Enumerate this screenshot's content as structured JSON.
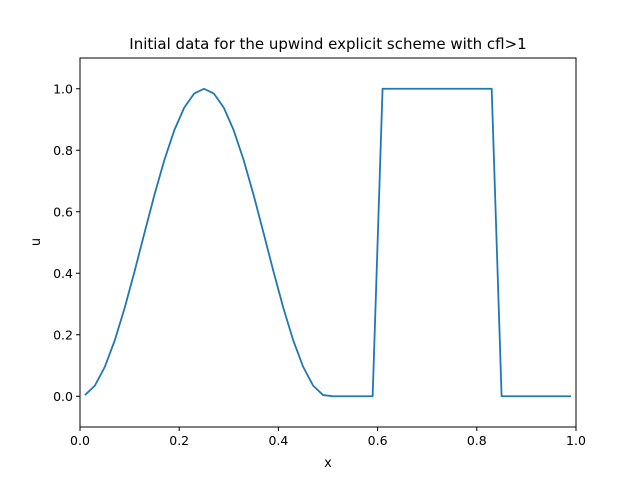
{
  "chart_data": {
    "type": "line",
    "title": "Initial data for the upwind explicit scheme with cfl>1",
    "xlabel": "x",
    "ylabel": "u",
    "xlim": [
      0.0,
      1.0
    ],
    "ylim": [
      -0.1,
      1.1
    ],
    "grid": false,
    "legend": "none",
    "xticks": [
      0.0,
      0.2,
      0.4,
      0.6,
      0.8,
      1.0
    ],
    "xtick_labels": [
      "0.0",
      "0.2",
      "0.4",
      "0.6",
      "0.8",
      "1.0"
    ],
    "yticks": [
      0.0,
      0.2,
      0.4,
      0.6,
      0.8,
      1.0
    ],
    "ytick_labels": [
      "0.0",
      "0.2",
      "0.4",
      "0.6",
      "0.8",
      "1.0"
    ],
    "series": [
      {
        "color": "#1f77b4",
        "x": [
          0.01,
          0.03,
          0.05,
          0.07,
          0.09,
          0.11,
          0.13,
          0.15,
          0.17,
          0.19,
          0.21,
          0.23,
          0.25,
          0.27,
          0.29,
          0.31,
          0.33,
          0.35,
          0.37,
          0.39,
          0.41,
          0.43,
          0.45,
          0.47,
          0.49,
          0.51,
          0.53,
          0.55,
          0.57,
          0.59,
          0.61,
          0.63,
          0.65,
          0.67,
          0.69,
          0.71,
          0.73,
          0.75,
          0.77,
          0.79,
          0.81,
          0.83,
          0.85,
          0.87,
          0.89,
          0.91,
          0.93,
          0.95,
          0.97,
          0.99
        ],
        "y": [
          0.0039,
          0.0345,
          0.0955,
          0.1813,
          0.2871,
          0.4062,
          0.5313,
          0.6545,
          0.7679,
          0.8645,
          0.9383,
          0.9843,
          1.0,
          0.9843,
          0.9383,
          0.8645,
          0.7679,
          0.6545,
          0.5313,
          0.4062,
          0.2871,
          0.1813,
          0.0955,
          0.0345,
          0.0039,
          0,
          0,
          0,
          0,
          0,
          1,
          1,
          1,
          1,
          1,
          1,
          1,
          1,
          1,
          1,
          1,
          1,
          0,
          0,
          0,
          0,
          0,
          0,
          0,
          0
        ]
      }
    ]
  }
}
